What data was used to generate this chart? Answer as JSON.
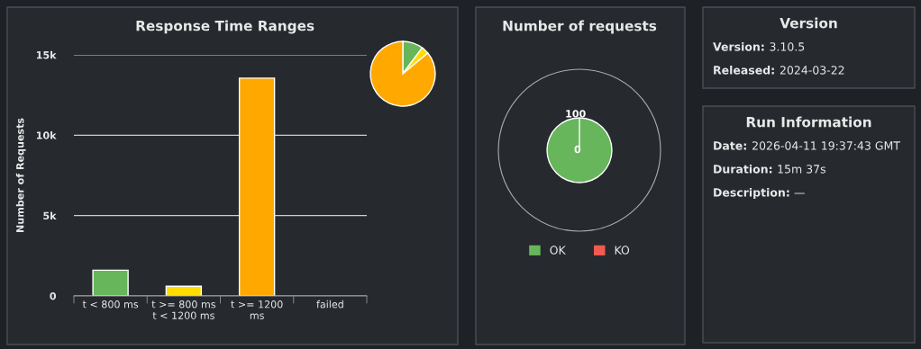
{
  "chart_data": [
    {
      "type": "bar",
      "title": "Response Time Ranges",
      "ylabel": "Number of Requests",
      "categories": [
        "t < 800 ms",
        "t >= 800 ms\nt < 1200 ms",
        "t >= 1200\nms",
        "failed"
      ],
      "values": [
        1600,
        600,
        13550,
        0
      ],
      "colors": [
        "#68b65c",
        "#ffdd00",
        "#ffa900",
        "#f15b4f"
      ],
      "ylim": [
        0,
        15000
      ],
      "yticks": [
        0,
        {
          "value": 5000,
          "label": "5k"
        },
        {
          "value": 10000,
          "label": "10k"
        },
        {
          "value": 15000,
          "label": "15k"
        }
      ],
      "grid": "y"
    },
    {
      "type": "pie",
      "categories": [
        null,
        null,
        null
      ],
      "values": [
        10.2,
        3.8,
        86.0
      ],
      "colors": [
        "#68b65c",
        "#ffdd00",
        "#ffa900"
      ]
    },
    {
      "type": "pie",
      "title": "Number of requests",
      "categories": [
        "OK",
        "KO"
      ],
      "values": [
        100,
        0
      ],
      "colors": [
        "#68b65c",
        "#f15b4f"
      ],
      "legend": "bottom",
      "annotations": [
        "100",
        "0"
      ]
    },
    {
      "type": "other",
      "title": "Version",
      "annotations": [
        "Version: 3.10.5",
        "Released: 2024-03-22"
      ]
    },
    {
      "type": "other",
      "title": "Run Information",
      "annotations": [
        "Date: 2026-04-11 19:37:43 GMT",
        "Duration: 15m 37s",
        "Description: —"
      ]
    }
  ]
}
